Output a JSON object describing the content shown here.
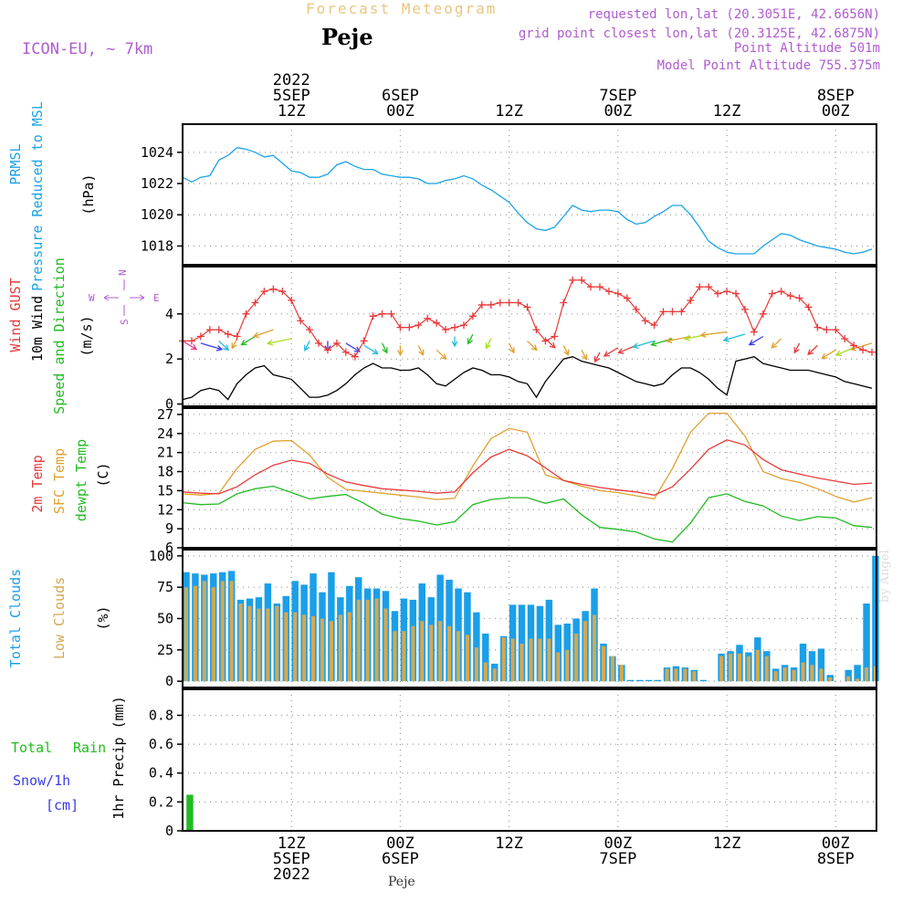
{
  "header": {
    "title": "Forecast Meteogram",
    "station": "Peje",
    "model": "ICON-EU, ~ 7km",
    "requested": "requested lon,lat (20.3051E, 42.6656N)",
    "grid_point": "grid point closest lon,lat (20.3125E, 42.6875N)",
    "point_altitude": "Point Altitude 501m",
    "model_altitude": "Model Point Altitude 755.375m"
  },
  "footer": {
    "station": "Peje",
    "credit": "by Angel"
  },
  "time_axis": {
    "top_year": "2022",
    "labels": [
      {
        "hour": 12,
        "line1": "5SEP",
        "line2": "12Z"
      },
      {
        "hour": 24,
        "line1": "6SEP",
        "line2": "00Z"
      },
      {
        "hour": 36,
        "line1": "",
        "line2": "12Z"
      },
      {
        "hour": 48,
        "line1": "7SEP",
        "line2": "00Z"
      },
      {
        "hour": 60,
        "line1": "",
        "line2": "12Z"
      },
      {
        "hour": 72,
        "line1": "8SEP",
        "line2": "00Z"
      }
    ],
    "bottom_labels": [
      {
        "hour": 12,
        "line1": "12Z",
        "line2": "5SEP",
        "line3": "2022"
      },
      {
        "hour": 24,
        "line1": "00Z",
        "line2": "6SEP",
        "line3": ""
      },
      {
        "hour": 36,
        "line1": "12Z",
        "line2": "",
        "line3": ""
      },
      {
        "hour": 48,
        "line1": "00Z",
        "line2": "7SEP",
        "line3": ""
      },
      {
        "hour": 60,
        "line1": "12Z",
        "line2": "",
        "line3": ""
      },
      {
        "hour": 72,
        "line1": "00Z",
        "line2": "8SEP",
        "line3": ""
      }
    ],
    "range_hours": [
      0,
      76.5
    ]
  },
  "colors": {
    "pressure": "#1aa3e8",
    "gust": "#e83a3a",
    "wind": "#000000",
    "direction": "#22bb22",
    "temp": "#e83a3a",
    "sfc": "#e0a030",
    "dewpt": "#22bb22",
    "total_clouds": "#1a9fe8",
    "low_clouds": "#d4a850",
    "rain": "#22bb22",
    "snow": "#3a3ae8",
    "compass": "#b05cd0"
  },
  "chart_data": [
    {
      "type": "line",
      "id": "pressure",
      "ylabel_1": "PRMSL",
      "ylabel_2": "Pressure Reduced to MSL",
      "unit": "(hPa)",
      "ylim": [
        1016.8,
        1025.8
      ],
      "yticks": [
        1018,
        1020,
        1022,
        1024
      ],
      "x": [
        0,
        1,
        2,
        3,
        4,
        5,
        6,
        7,
        8,
        9,
        10,
        11,
        12,
        13,
        14,
        15,
        16,
        17,
        18,
        19,
        20,
        21,
        22,
        23,
        24,
        25,
        26,
        27,
        28,
        29,
        30,
        31,
        32,
        33,
        34,
        35,
        36,
        37,
        38,
        39,
        40,
        41,
        42,
        43,
        44,
        45,
        46,
        47,
        48,
        49,
        50,
        51,
        52,
        53,
        54,
        55,
        56,
        57,
        58,
        59,
        60,
        61,
        62,
        63,
        64,
        65,
        66,
        67,
        68,
        69,
        70,
        71,
        72,
        73,
        74,
        75,
        76
      ],
      "values": [
        1022.4,
        1022.1,
        1022.4,
        1022.5,
        1023.5,
        1023.8,
        1024.3,
        1024.2,
        1024.0,
        1023.7,
        1023.8,
        1023.3,
        1022.8,
        1022.7,
        1022.4,
        1022.4,
        1022.6,
        1023.2,
        1023.4,
        1023.1,
        1022.9,
        1022.9,
        1022.6,
        1022.5,
        1022.4,
        1022.4,
        1022.3,
        1022.0,
        1022.0,
        1022.2,
        1022.3,
        1022.5,
        1022.3,
        1021.9,
        1021.6,
        1021.2,
        1020.8,
        1020.1,
        1019.5,
        1019.1,
        1019.0,
        1019.2,
        1019.9,
        1020.6,
        1020.3,
        1020.2,
        1020.3,
        1020.3,
        1020.2,
        1019.7,
        1019.4,
        1019.5,
        1019.9,
        1020.2,
        1020.6,
        1020.6,
        1020.0,
        1019.2,
        1018.3,
        1017.9,
        1017.6,
        1017.5,
        1017.5,
        1017.5,
        1018.0,
        1018.4,
        1018.8,
        1018.7,
        1018.4,
        1018.2,
        1018.0,
        1017.9,
        1017.8,
        1017.6,
        1017.5,
        1017.6,
        1017.8
      ]
    },
    {
      "type": "line",
      "id": "wind",
      "ylabel_1": "Wind GUST",
      "ylabel_2": "10m Wind",
      "ylabel_3": "Speed and Direction",
      "unit": "(m/s)",
      "compass": {
        "n": "N",
        "s": "S",
        "w": "W",
        "e": "E"
      },
      "ylim": [
        -0.1,
        6.1
      ],
      "yticks": [
        0,
        2,
        4
      ],
      "x_gust": [
        0,
        1,
        2,
        3,
        4,
        5,
        6,
        7,
        8,
        9,
        10,
        11,
        12,
        13,
        14,
        15,
        16,
        17,
        18,
        19,
        20,
        21,
        22,
        23,
        24,
        25,
        26,
        27,
        28,
        29,
        30,
        31,
        32,
        33,
        34,
        35,
        36,
        37,
        38,
        39,
        40,
        41,
        42,
        43,
        44,
        45,
        46,
        47,
        48,
        49,
        50,
        51,
        52,
        53,
        54,
        55,
        56,
        57,
        58,
        59,
        60,
        61,
        62,
        63,
        64,
        65,
        66,
        67,
        68,
        69,
        70,
        71,
        72,
        73,
        74,
        75,
        76
      ],
      "gust": [
        2.8,
        2.8,
        3.0,
        3.3,
        3.3,
        3.1,
        3.0,
        4.0,
        4.5,
        5.0,
        5.1,
        5.0,
        4.6,
        3.7,
        3.3,
        2.7,
        2.4,
        2.7,
        2.3,
        2.1,
        2.8,
        3.9,
        4.0,
        4.0,
        3.4,
        3.4,
        3.5,
        3.8,
        3.6,
        3.3,
        3.4,
        3.5,
        3.9,
        4.4,
        4.4,
        4.5,
        4.5,
        4.5,
        4.3,
        3.3,
        2.8,
        3.0,
        4.5,
        5.5,
        5.5,
        5.2,
        5.2,
        5.0,
        4.9,
        4.7,
        4.2,
        3.7,
        3.5,
        4.1,
        4.1,
        4.1,
        4.6,
        5.2,
        5.2,
        4.9,
        5.0,
        4.9,
        4.2,
        3.2,
        4.0,
        4.9,
        5.0,
        4.8,
        4.7,
        4.3,
        3.4,
        3.3,
        3.3,
        2.9,
        2.6,
        2.4,
        2.3
      ],
      "speed": [
        0.2,
        0.3,
        0.6,
        0.7,
        0.6,
        0.2,
        0.9,
        1.3,
        1.6,
        1.7,
        1.3,
        1.2,
        1.1,
        0.7,
        0.3,
        0.3,
        0.4,
        0.6,
        0.9,
        1.3,
        1.6,
        1.8,
        1.6,
        1.6,
        1.5,
        1.5,
        1.6,
        1.3,
        0.9,
        0.8,
        1.1,
        1.4,
        1.6,
        1.5,
        1.3,
        1.3,
        1.2,
        1.0,
        0.9,
        0.3,
        1.0,
        1.5,
        2.0,
        2.1,
        1.9,
        1.8,
        1.7,
        1.6,
        1.4,
        1.2,
        1.0,
        0.9,
        0.8,
        0.9,
        1.3,
        1.6,
        1.6,
        1.4,
        1.1,
        0.7,
        0.4,
        1.9,
        2.0,
        2.1,
        1.8,
        1.7,
        1.6,
        1.5,
        1.5,
        1.5,
        1.4,
        1.3,
        1.2,
        1.0,
        0.9,
        0.8,
        0.7
      ],
      "arrows_x": [
        0,
        2,
        4,
        6,
        8,
        10,
        12,
        14,
        16,
        18,
        20,
        22,
        24,
        26,
        28,
        30,
        32,
        34,
        36,
        38,
        40,
        42,
        44,
        46,
        48,
        50,
        52,
        54,
        56,
        58,
        60,
        62,
        64,
        66,
        68,
        70,
        72,
        74,
        76
      ],
      "arrows_y": [
        2.8,
        2.7,
        2.8,
        2.9,
        3.0,
        3.3,
        2.9,
        2.8,
        2.8,
        2.7,
        2.6,
        2.7,
        2.6,
        2.6,
        2.4,
        3.0,
        3.1,
        2.9,
        2.7,
        2.8,
        2.9,
        2.6,
        2.4,
        2.3,
        2.5,
        2.6,
        2.8,
        2.9,
        3.0,
        3.1,
        3.2,
        3.1,
        3.0,
        2.9,
        2.7,
        2.6,
        2.4,
        2.5,
        2.7
      ],
      "arrows_dir": [
        60,
        40,
        70,
        100,
        120,
        135,
        150,
        100,
        90,
        60,
        60,
        80,
        90,
        80,
        70,
        90,
        100,
        100,
        80,
        70,
        70,
        80,
        80,
        100,
        120,
        130,
        140,
        140,
        150,
        150,
        160,
        140,
        120,
        110,
        100,
        110,
        120,
        130,
        140
      ],
      "arrows_color": [
        "#e83a8a",
        "#3a3ae8",
        "#22bbdd",
        "#e0a030",
        "#22bb22",
        "#e0a030",
        "#aadd22",
        "#22bbdd",
        "#3a3ae8",
        "#3a3ae8",
        "#22bbdd",
        "#22bb22",
        "#e0a030",
        "#e0a030",
        "#e0a030",
        "#22bbdd",
        "#22bb22",
        "#aadd22",
        "#e0a030",
        "#e0a030",
        "#e83a3a",
        "#e0a030",
        "#e0a030",
        "#e83a3a",
        "#e83a3a",
        "#e83a3a",
        "#22bbdd",
        "#22bb22",
        "#e0a030",
        "#aadd22",
        "#e0a030",
        "#22bbdd",
        "#3a3ae8",
        "#e0a030",
        "#e83a3a",
        "#e83a3a",
        "#e0a030",
        "#aadd22",
        "#e0a030"
      ]
    },
    {
      "type": "line",
      "id": "temperature",
      "ylabel_1": "2m Temp",
      "ylabel_2": "SFC Temp",
      "ylabel_3": "dewpt Temp",
      "unit": "(C)",
      "ylim": [
        6,
        28
      ],
      "yticks": [
        6,
        9,
        12,
        15,
        18,
        21,
        24,
        27
      ],
      "x": [
        0,
        2,
        4,
        6,
        8,
        10,
        12,
        14,
        16,
        18,
        20,
        22,
        24,
        26,
        28,
        30,
        32,
        34,
        36,
        38,
        40,
        42,
        44,
        46,
        48,
        50,
        52,
        54,
        56,
        58,
        60,
        62,
        64,
        66,
        68,
        70,
        72,
        74,
        76
      ],
      "temp_2m": [
        14.8,
        14.6,
        14.5,
        15.6,
        17.5,
        19.0,
        19.8,
        19.3,
        17.6,
        16.4,
        15.8,
        15.3,
        15.1,
        14.9,
        14.6,
        14.8,
        17.8,
        20.3,
        21.5,
        20.5,
        18.6,
        16.6,
        16.0,
        15.5,
        15.1,
        14.8,
        14.3,
        15.6,
        18.4,
        21.5,
        23.0,
        22.2,
        19.9,
        18.3,
        17.6,
        17.0,
        16.5,
        16.0,
        16.2
      ],
      "temp_sfc": [
        14.5,
        14.3,
        14.6,
        18.5,
        21.5,
        22.8,
        22.9,
        20.6,
        17.1,
        15.2,
        14.9,
        14.6,
        14.3,
        14.0,
        13.6,
        13.8,
        18.9,
        23.2,
        24.8,
        24.2,
        17.5,
        16.6,
        15.7,
        15.0,
        14.7,
        14.2,
        13.7,
        18.5,
        24.2,
        27.2,
        27.2,
        23.6,
        18.0,
        16.9,
        16.3,
        15.3,
        14.1,
        13.2,
        13.9
      ],
      "temp_dewpt": [
        13.1,
        12.8,
        12.9,
        14.5,
        15.3,
        15.7,
        14.7,
        13.7,
        14.1,
        14.4,
        13.0,
        11.3,
        10.6,
        10.2,
        9.6,
        10.1,
        12.8,
        13.6,
        13.9,
        13.9,
        13.0,
        13.7,
        11.2,
        9.2,
        8.9,
        8.5,
        7.4,
        6.9,
        9.9,
        13.9,
        14.5,
        13.3,
        12.6,
        11.0,
        10.3,
        10.9,
        10.7,
        9.5,
        9.2
      ]
    },
    {
      "type": "bar",
      "id": "clouds",
      "ylabel_1": "Total Clouds",
      "ylabel_2": "Low Clouds",
      "unit": "(%)",
      "ylim": [
        -5,
        105
      ],
      "yticks": [
        0,
        25,
        50,
        75,
        100
      ],
      "x": [
        0,
        1,
        2,
        3,
        4,
        5,
        6,
        7,
        8,
        9,
        10,
        11,
        12,
        13,
        14,
        15,
        16,
        17,
        18,
        19,
        20,
        21,
        22,
        23,
        24,
        25,
        26,
        27,
        28,
        29,
        30,
        31,
        32,
        33,
        34,
        35,
        36,
        37,
        38,
        39,
        40,
        41,
        42,
        43,
        44,
        45,
        46,
        47,
        48,
        49,
        50,
        51,
        52,
        53,
        54,
        55,
        56,
        57,
        58,
        59,
        60,
        61,
        62,
        63,
        64,
        65,
        66,
        67,
        68,
        69,
        70,
        71,
        72,
        73,
        74,
        75,
        76
      ],
      "total": [
        87,
        86,
        85,
        86,
        87,
        88,
        65,
        66,
        67,
        78,
        62,
        68,
        80,
        77,
        86,
        71,
        87,
        67,
        76,
        83,
        74,
        74,
        72,
        56,
        66,
        65,
        78,
        67,
        85,
        81,
        74,
        71,
        55,
        38,
        14,
        36,
        61,
        61,
        61,
        60,
        65,
        45,
        46,
        50,
        56,
        74,
        30,
        20,
        13,
        1,
        1,
        1,
        1,
        11,
        12,
        11,
        9,
        1,
        0,
        22,
        24,
        29,
        23,
        35,
        24,
        10,
        13,
        11,
        30,
        24,
        26,
        5,
        0,
        9,
        13,
        62,
        100
      ],
      "low": [
        75,
        76,
        80,
        75,
        80,
        80,
        62,
        60,
        58,
        58,
        60,
        55,
        55,
        53,
        52,
        50,
        48,
        53,
        55,
        65,
        65,
        66,
        58,
        40,
        40,
        44,
        48,
        45,
        48,
        44,
        40,
        37,
        27,
        15,
        10,
        35,
        34,
        30,
        34,
        34,
        34,
        23,
        25,
        38,
        48,
        53,
        28,
        20,
        13,
        0,
        0,
        0,
        0,
        10,
        10,
        10,
        8,
        0,
        0,
        20,
        22,
        22,
        20,
        25,
        20,
        8,
        11,
        9,
        15,
        13,
        10,
        3,
        0,
        4,
        2,
        11,
        12
      ]
    },
    {
      "type": "bar",
      "id": "precip",
      "ylabel_1": "Total",
      "ylabel_1b": "Rain",
      "ylabel_2": "Snow/1h",
      "ylabel_3": "[cm]",
      "unit": "1hr Precip (mm)",
      "ylim": [
        0,
        0.98
      ],
      "yticks": [
        0,
        0.2,
        0.4,
        0.6,
        0.8
      ],
      "x": [
        0
      ],
      "rain": [
        0.25
      ],
      "snow": [
        0
      ]
    }
  ]
}
